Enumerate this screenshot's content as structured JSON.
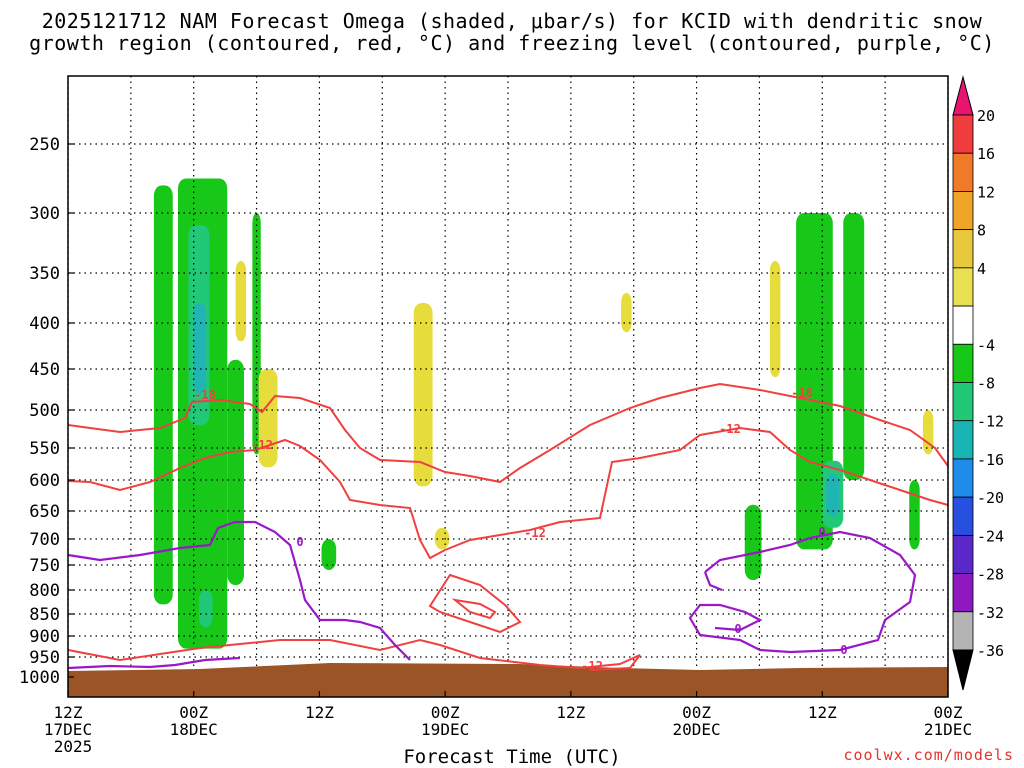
{
  "title_line1": "2025121712 NAM Forecast Omega (shaded, μbar/s) for KCID with dendritic snow",
  "title_line2": "growth region (contoured, red, °C) and freezing level (contoured, purple, °C)",
  "credit": "coolwx.com/models",
  "chart_data": {
    "type": "heatmap",
    "title": "2025121712 NAM Forecast Omega (shaded, μbar/s) for KCID with dendritic snow growth region (contoured, red, °C) and freezing level (contoured, purple, °C)",
    "xlabel": "Forecast Time (UTC)",
    "ylabel": "",
    "y_axis": "pressure (mb), reversed, log-like",
    "y_ticks": [
      250,
      300,
      350,
      400,
      450,
      500,
      550,
      600,
      650,
      700,
      750,
      800,
      850,
      900,
      950,
      1000
    ],
    "x_range_hours": [
      0,
      84
    ],
    "x_ticks": [
      {
        "hour": 0,
        "line1": "12Z",
        "line2": "17DEC",
        "line3": "2025"
      },
      {
        "hour": 12,
        "line1": "00Z",
        "line2": "18DEC",
        "line3": ""
      },
      {
        "hour": 24,
        "line1": "12Z",
        "line2": "",
        "line3": ""
      },
      {
        "hour": 36,
        "line1": "00Z",
        "line2": "19DEC",
        "line3": ""
      },
      {
        "hour": 48,
        "line1": "12Z",
        "line2": "",
        "line3": ""
      },
      {
        "hour": 60,
        "line1": "00Z",
        "line2": "20DEC",
        "line3": ""
      },
      {
        "hour": 72,
        "line1": "12Z",
        "line2": "",
        "line3": ""
      },
      {
        "hour": 84,
        "line1": "00Z",
        "line2": "21DEC",
        "line3": ""
      }
    ],
    "grid": true,
    "colorbar": {
      "placement": "right",
      "labels": [
        "20",
        "16",
        "12",
        "8",
        "4",
        "-4",
        "-8",
        "-12",
        "-16",
        "-20",
        "-24",
        "-28",
        "-32",
        "-36"
      ],
      "colors": [
        "#e8156f",
        "#f03c3c",
        "#f07a28",
        "#f0a428",
        "#e8c83c",
        "#e8e050",
        "#ffffff",
        "#18c818",
        "#20c878",
        "#18b4b4",
        "#1e8ce8",
        "#2850e0",
        "#5a28c8",
        "#9018c0",
        "#b4b4b4",
        "#000000"
      ]
    },
    "contour_labels": {
      "red": [
        "-18",
        "-12",
        "-12",
        "-12",
        "-18",
        "-12",
        "-12"
      ],
      "purple": [
        "0",
        "0",
        "0",
        "0"
      ]
    },
    "shaded_regions": [
      {
        "level": -4,
        "hour_range": [
          8.2,
          10.0
        ],
        "p_range": [
          280,
          830
        ]
      },
      {
        "level": -4,
        "hour_range": [
          10.5,
          15.2
        ],
        "p_range": [
          275,
          930
        ]
      },
      {
        "level": -4,
        "hour_range": [
          15.2,
          16.8
        ],
        "p_range": [
          440,
          790
        ]
      },
      {
        "level": -4,
        "hour_range": [
          17.6,
          18.4
        ],
        "p_range": [
          300,
          560
        ]
      },
      {
        "level": -4,
        "hour_range": [
          24.2,
          25.6
        ],
        "p_range": [
          700,
          760
        ]
      },
      {
        "level": -4,
        "hour_range": [
          64.6,
          66.2
        ],
        "p_range": [
          640,
          780
        ]
      },
      {
        "level": -4,
        "hour_range": [
          69.5,
          73.0
        ],
        "p_range": [
          300,
          720
        ]
      },
      {
        "level": -4,
        "hour_range": [
          74.0,
          76.0
        ],
        "p_range": [
          300,
          600
        ]
      },
      {
        "level": -4,
        "hour_range": [
          80.3,
          81.3
        ],
        "p_range": [
          600,
          720
        ]
      },
      {
        "level": -8,
        "hour_range": [
          11.5,
          13.5
        ],
        "p_range": [
          310,
          520
        ]
      },
      {
        "level": -8,
        "hour_range": [
          12.5,
          13.8
        ],
        "p_range": [
          800,
          880
        ]
      },
      {
        "level": -8,
        "hour_range": [
          72.0,
          74.0
        ],
        "p_range": [
          570,
          680
        ]
      },
      {
        "level": -12,
        "hour_range": [
          12.0,
          13.2
        ],
        "p_range": [
          380,
          480
        ]
      },
      {
        "level": -12,
        "hour_range": [
          72.4,
          73.6
        ],
        "p_range": [
          590,
          660
        ]
      },
      {
        "level": 4,
        "hour_range": [
          16.0,
          17.0
        ],
        "p_range": [
          340,
          420
        ]
      },
      {
        "level": 4,
        "hour_range": [
          18.2,
          20.0
        ],
        "p_range": [
          450,
          580
        ]
      },
      {
        "level": 4,
        "hour_range": [
          33.0,
          34.8
        ],
        "p_range": [
          380,
          610
        ]
      },
      {
        "level": 4,
        "hour_range": [
          35.0,
          36.4
        ],
        "p_range": [
          680,
          720
        ]
      },
      {
        "level": 4,
        "hour_range": [
          52.8,
          53.8
        ],
        "p_range": [
          370,
          410
        ]
      },
      {
        "level": 4,
        "hour_range": [
          67.0,
          68.0
        ],
        "p_range": [
          340,
          460
        ]
      },
      {
        "level": 4,
        "hour_range": [
          81.6,
          82.6
        ],
        "p_range": [
          500,
          560
        ]
      }
    ]
  }
}
